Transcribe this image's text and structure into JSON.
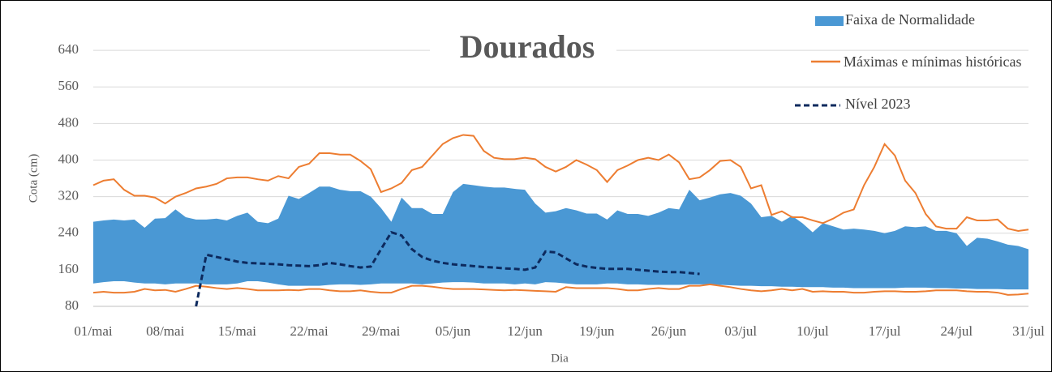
{
  "chart_data": {
    "type": "band-line",
    "title": "Dourados",
    "x_label": "Dia",
    "y_label": "Cota (cm)",
    "categories": [
      "01/mai",
      null,
      null,
      null,
      null,
      null,
      null,
      "08/mai",
      null,
      null,
      null,
      null,
      null,
      null,
      "15/mai",
      null,
      null,
      null,
      null,
      null,
      null,
      "22/mai",
      null,
      null,
      null,
      null,
      null,
      null,
      "29/mai",
      null,
      null,
      null,
      null,
      null,
      null,
      "05/jun",
      null,
      null,
      null,
      null,
      null,
      null,
      "12/jun",
      null,
      null,
      null,
      null,
      null,
      null,
      "19/jun",
      null,
      null,
      null,
      null,
      null,
      null,
      "26/jun",
      null,
      null,
      null,
      null,
      null,
      null,
      "03/jul",
      null,
      null,
      null,
      null,
      null,
      null,
      "10/jul",
      null,
      null,
      null,
      null,
      null,
      null,
      "17/jul",
      null,
      null,
      null,
      null,
      null,
      null,
      "24/jul",
      null,
      null,
      null,
      null,
      null,
      null,
      "31/jul"
    ],
    "ylim": [
      80,
      720
    ],
    "yticks": [
      80,
      160,
      240,
      320,
      400,
      480,
      560,
      640
    ],
    "grid": true,
    "legend": "top-right",
    "series": [
      {
        "name": "Faixa de Normalidade",
        "color": "#4a98d4",
        "values": [
          265,
          268,
          270,
          268,
          270,
          252,
          272,
          273,
          292,
          275,
          270,
          270,
          272,
          268,
          278,
          285,
          265,
          262,
          272,
          322,
          315,
          328,
          342,
          342,
          335,
          332,
          332,
          320,
          295,
          265,
          318,
          295,
          295,
          282,
          282,
          330,
          348,
          345,
          342,
          340,
          340,
          337,
          335,
          305,
          285,
          288,
          295,
          290,
          283,
          283,
          270,
          290,
          282,
          282,
          278,
          285,
          295,
          292,
          335,
          312,
          318,
          325,
          328,
          322,
          305,
          275,
          278,
          265,
          278,
          262,
          242,
          262,
          255,
          248,
          250,
          248,
          245,
          240,
          245,
          255,
          253,
          255,
          245,
          245,
          240,
          212,
          230,
          228,
          222,
          215,
          212,
          205
        ],
        "lower": [
          130,
          133,
          135,
          135,
          132,
          130,
          130,
          128,
          130,
          130,
          130,
          128,
          128,
          128,
          130,
          135,
          135,
          132,
          128,
          125,
          125,
          125,
          125,
          127,
          128,
          128,
          127,
          128,
          130,
          130,
          130,
          130,
          128,
          130,
          132,
          133,
          133,
          132,
          130,
          130,
          130,
          128,
          130,
          128,
          133,
          132,
          130,
          128,
          128,
          128,
          130,
          130,
          128,
          128,
          127,
          127,
          127,
          127,
          128,
          128,
          128,
          127,
          126,
          125,
          125,
          124,
          124,
          123,
          123,
          122,
          122,
          122,
          121,
          121,
          120,
          120,
          120,
          120,
          120,
          121,
          121,
          121,
          120,
          120,
          119,
          119,
          118,
          118,
          118,
          117,
          117,
          117
        ]
      },
      {
        "name": "Máximas e mínimas históricas",
        "color": "#ed7d31",
        "values": [
          345,
          355,
          358,
          335,
          322,
          322,
          318,
          305,
          320,
          328,
          338,
          342,
          348,
          360,
          362,
          362,
          358,
          355,
          365,
          360,
          385,
          392,
          415,
          415,
          412,
          412,
          398,
          380,
          330,
          338,
          350,
          378,
          385,
          410,
          435,
          448,
          455,
          453,
          420,
          405,
          402,
          402,
          405,
          402,
          385,
          375,
          385,
          400,
          390,
          378,
          352,
          378,
          388,
          400,
          405,
          400,
          412,
          395,
          358,
          362,
          378,
          398,
          400,
          385,
          338,
          345,
          280,
          288,
          275,
          275,
          268,
          262,
          272,
          285,
          292,
          345,
          385,
          435,
          410,
          355,
          328,
          282,
          255,
          250,
          250,
          275,
          268,
          268,
          270,
          250,
          245,
          248
        ],
        "lower": [
          110,
          112,
          110,
          110,
          112,
          118,
          115,
          116,
          112,
          118,
          125,
          123,
          120,
          118,
          120,
          118,
          115,
          115,
          115,
          116,
          115,
          118,
          118,
          115,
          113,
          113,
          115,
          112,
          110,
          110,
          118,
          125,
          125,
          123,
          120,
          118,
          118,
          118,
          117,
          116,
          115,
          116,
          115,
          114,
          113,
          112,
          122,
          120,
          120,
          120,
          120,
          118,
          115,
          115,
          118,
          120,
          118,
          118,
          125,
          125,
          128,
          125,
          122,
          118,
          115,
          113,
          115,
          118,
          115,
          118,
          112,
          113,
          112,
          112,
          110,
          110,
          112,
          113,
          113,
          112,
          112,
          113,
          115,
          115,
          115,
          113,
          112,
          112,
          110,
          105,
          106,
          108
        ]
      },
      {
        "name": "Nível 2023",
        "color": "#0d2a5e",
        "dashed": true,
        "values": [
          null,
          null,
          null,
          null,
          null,
          null,
          null,
          null,
          null,
          null,
          80,
          193,
          188,
          183,
          178,
          175,
          174,
          173,
          172,
          170,
          169,
          168,
          170,
          175,
          172,
          168,
          165,
          167,
          205,
          242,
          235,
          205,
          188,
          180,
          175,
          172,
          170,
          168,
          166,
          165,
          163,
          162,
          160,
          165,
          200,
          198,
          185,
          172,
          167,
          164,
          162,
          162,
          162,
          160,
          158,
          156,
          155,
          155,
          153,
          151,
          null,
          null,
          null,
          null,
          null,
          null,
          null,
          null,
          null,
          null,
          null,
          null,
          null,
          null,
          null,
          null,
          null,
          null,
          null,
          null,
          null,
          null,
          null,
          null,
          null,
          null,
          null,
          null,
          null,
          null,
          null,
          null
        ]
      }
    ]
  }
}
